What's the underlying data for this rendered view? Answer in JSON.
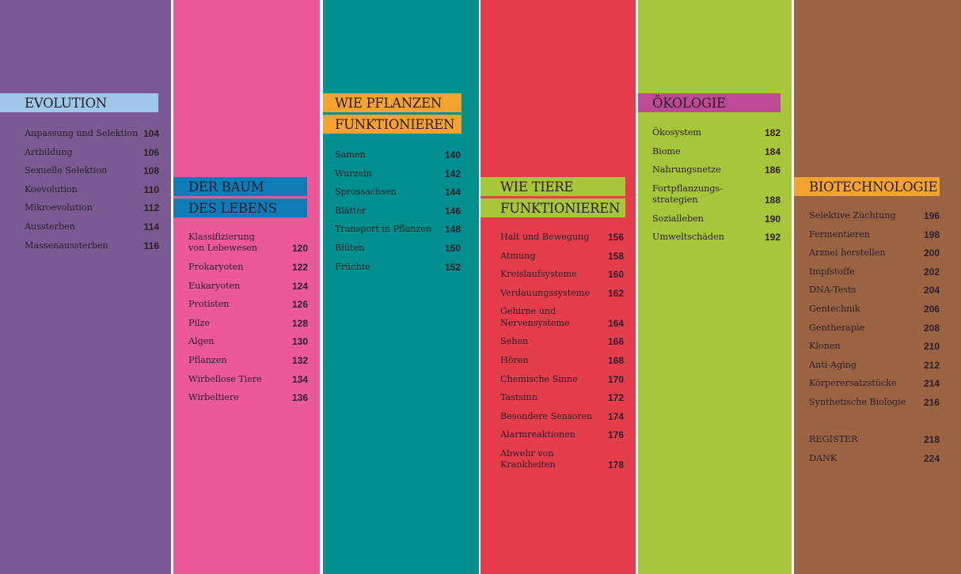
{
  "colors": {
    "evolution": "#7a5a91",
    "baum": "#ea5a98",
    "pflanzen": "#008f8c",
    "tiere": "#e43d4c",
    "oekologie": "#a6c73a",
    "biotech": "#9a6443",
    "bar_evolution": "#9ec8e6",
    "bar_baum": "#0f7bb7",
    "bar_pflanzen": "#f2a330",
    "bar_tiere": "#a6c73a",
    "bar_oekologie": "#bd4a94",
    "bar_biotech": "#f2a330"
  },
  "sections": [
    {
      "id": "evolution",
      "title": [
        "EVOLUTION"
      ],
      "items": [
        {
          "title": [
            "Anpassung und Selektion"
          ],
          "page": "104"
        },
        {
          "title": [
            "Artbildung"
          ],
          "page": "106"
        },
        {
          "title": [
            "Sexuelle Selektion"
          ],
          "page": "108"
        },
        {
          "title": [
            "Koevolution"
          ],
          "page": "110"
        },
        {
          "title": [
            "Mikroevolution"
          ],
          "page": "112"
        },
        {
          "title": [
            "Aussterben"
          ],
          "page": "114"
        },
        {
          "title": [
            "Massenaussterben"
          ],
          "page": "116"
        }
      ]
    },
    {
      "id": "baum",
      "title": [
        "DER BAUM",
        "DES LEBENS"
      ],
      "items": [
        {
          "title": [
            "Klassifizierung",
            "von Lebewesen"
          ],
          "page": "120"
        },
        {
          "title": [
            "Prokaryoten"
          ],
          "page": "122"
        },
        {
          "title": [
            "Eukaryoten"
          ],
          "page": "124"
        },
        {
          "title": [
            "Protisten"
          ],
          "page": "126"
        },
        {
          "title": [
            "Pilze"
          ],
          "page": "128"
        },
        {
          "title": [
            "Algen"
          ],
          "page": "130"
        },
        {
          "title": [
            "Pflanzen"
          ],
          "page": "132"
        },
        {
          "title": [
            "Wirbellose Tiere"
          ],
          "page": "134"
        },
        {
          "title": [
            "Wirbeltiere"
          ],
          "page": "136"
        }
      ]
    },
    {
      "id": "pflanzen",
      "title": [
        "WIE PFLANZEN",
        "FUNKTIONIEREN"
      ],
      "items": [
        {
          "title": [
            "Samen"
          ],
          "page": "140"
        },
        {
          "title": [
            "Wurzeln"
          ],
          "page": "142"
        },
        {
          "title": [
            "Sprossachsen"
          ],
          "page": "144"
        },
        {
          "title": [
            "Blätter"
          ],
          "page": "146"
        },
        {
          "title": [
            "Transport in Pflanzen"
          ],
          "page": "148"
        },
        {
          "title": [
            "Blüten"
          ],
          "page": "150"
        },
        {
          "title": [
            "Früchte"
          ],
          "page": "152"
        }
      ]
    },
    {
      "id": "tiere",
      "title": [
        "WIE TIERE",
        "FUNKTIONIEREN"
      ],
      "items": [
        {
          "title": [
            "Halt und Bewegung"
          ],
          "page": "156"
        },
        {
          "title": [
            "Atmung"
          ],
          "page": "158"
        },
        {
          "title": [
            "Kreislaufsysteme"
          ],
          "page": "160"
        },
        {
          "title": [
            "Verdauungssysteme"
          ],
          "page": "162"
        },
        {
          "title": [
            "Gehirne und",
            "Nervensysteme"
          ],
          "page": "164"
        },
        {
          "title": [
            "Sehen"
          ],
          "page": "166"
        },
        {
          "title": [
            "Hören"
          ],
          "page": "168"
        },
        {
          "title": [
            "Chemische Sinne"
          ],
          "page": "170"
        },
        {
          "title": [
            "Tastsinn"
          ],
          "page": "172"
        },
        {
          "title": [
            "Besondere Sensoren"
          ],
          "page": "174"
        },
        {
          "title": [
            "Alarmreaktionen"
          ],
          "page": "176"
        },
        {
          "title": [
            "Abwehr von",
            "Krankheiten"
          ],
          "page": "178"
        }
      ]
    },
    {
      "id": "oekologie",
      "title": [
        "ÖKOLOGIE"
      ],
      "items": [
        {
          "title": [
            "Ökosystem"
          ],
          "page": "182"
        },
        {
          "title": [
            "Biome"
          ],
          "page": "184"
        },
        {
          "title": [
            "Nahrungsnetze"
          ],
          "page": "186"
        },
        {
          "title": [
            "Fortpflanzungs-",
            "strategien"
          ],
          "page": "188"
        },
        {
          "title": [
            "Sozialleben"
          ],
          "page": "190"
        },
        {
          "title": [
            "Umweltschäden"
          ],
          "page": "192"
        }
      ]
    },
    {
      "id": "biotech",
      "title": [
        "BIOTECHNOLOGIE"
      ],
      "items": [
        {
          "title": [
            "Selektive Züchtung"
          ],
          "page": "196"
        },
        {
          "title": [
            "Fermentieren"
          ],
          "page": "198"
        },
        {
          "title": [
            "Arznei herstellen"
          ],
          "page": "200"
        },
        {
          "title": [
            "Impfstoffe"
          ],
          "page": "202"
        },
        {
          "title": [
            "DNA-Tests"
          ],
          "page": "204"
        },
        {
          "title": [
            "Gentechnik"
          ],
          "page": "206"
        },
        {
          "title": [
            "Gentherapie"
          ],
          "page": "208"
        },
        {
          "title": [
            "Klonen"
          ],
          "page": "210"
        },
        {
          "title": [
            "Anti-Aging"
          ],
          "page": "212"
        },
        {
          "title": [
            "Körperersatzstücke"
          ],
          "page": "214"
        },
        {
          "title": [
            "Synthetische Biologie"
          ],
          "page": "216"
        }
      ],
      "extras": [
        {
          "title": [
            "REGISTER"
          ],
          "page": "218"
        },
        {
          "title": [
            "DANK"
          ],
          "page": "224"
        }
      ]
    }
  ]
}
